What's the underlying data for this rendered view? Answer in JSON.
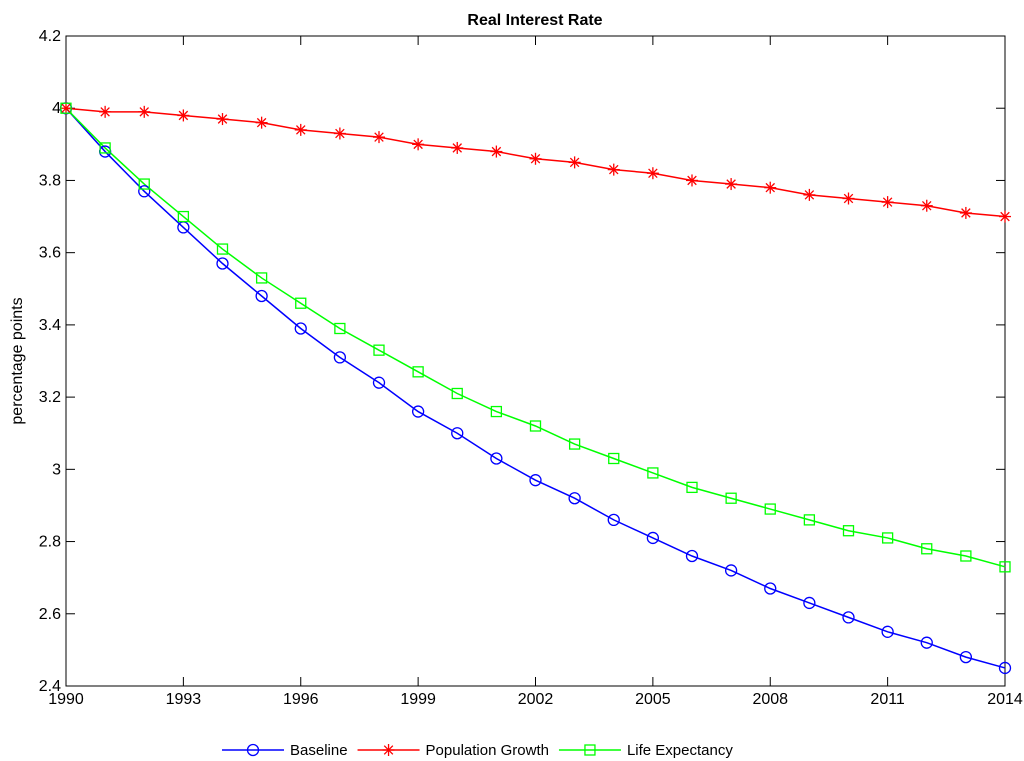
{
  "chart_data": {
    "type": "line",
    "title": "Real Interest Rate",
    "xlabel": "",
    "ylabel": "percentage points",
    "xlim": [
      1990,
      2014
    ],
    "ylim": [
      2.4,
      4.2
    ],
    "xticks": [
      "1990",
      "1993",
      "1996",
      "1999",
      "2002",
      "2005",
      "2008",
      "2011",
      "2014"
    ],
    "yticks": [
      "2.4",
      "2.6",
      "2.8",
      "3",
      "3.2",
      "3.4",
      "3.6",
      "3.8",
      "4",
      "4.2"
    ],
    "grid": false,
    "legend_position": "bottom",
    "x": [
      1990,
      1991,
      1992,
      1993,
      1994,
      1995,
      1996,
      1997,
      1998,
      1999,
      2000,
      2001,
      2002,
      2003,
      2004,
      2005,
      2006,
      2007,
      2008,
      2009,
      2010,
      2011,
      2012,
      2013,
      2014
    ],
    "series": [
      {
        "name": "Baseline",
        "color": "#0000ff",
        "marker": "circle",
        "values": [
          4.0,
          3.88,
          3.77,
          3.67,
          3.57,
          3.48,
          3.39,
          3.31,
          3.24,
          3.16,
          3.1,
          3.03,
          2.97,
          2.92,
          2.86,
          2.81,
          2.76,
          2.72,
          2.67,
          2.63,
          2.59,
          2.55,
          2.52,
          2.48,
          2.45
        ]
      },
      {
        "name": "Population Growth",
        "color": "#ff0000",
        "marker": "asterisk",
        "values": [
          4.0,
          3.99,
          3.99,
          3.98,
          3.97,
          3.96,
          3.94,
          3.93,
          3.92,
          3.9,
          3.89,
          3.88,
          3.86,
          3.85,
          3.83,
          3.82,
          3.8,
          3.79,
          3.78,
          3.76,
          3.75,
          3.74,
          3.73,
          3.71,
          3.7
        ]
      },
      {
        "name": "Life Expectancy",
        "color": "#00ff00",
        "marker": "square",
        "values": [
          4.0,
          3.89,
          3.79,
          3.7,
          3.61,
          3.53,
          3.46,
          3.39,
          3.33,
          3.27,
          3.21,
          3.16,
          3.12,
          3.07,
          3.03,
          2.99,
          2.95,
          2.92,
          2.89,
          2.86,
          2.83,
          2.81,
          2.78,
          2.76,
          2.73
        ]
      }
    ]
  }
}
